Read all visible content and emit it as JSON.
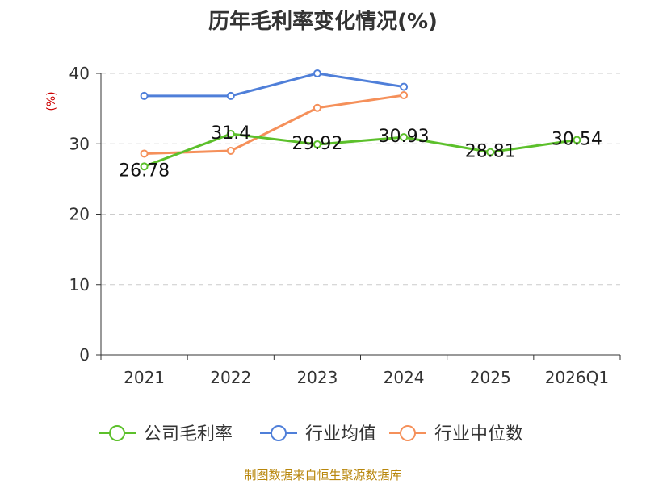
{
  "title": "历年毛利率变化情况(%)",
  "footer": "制图数据来自恒生聚源数据库",
  "chart_data": {
    "type": "line",
    "title": "历年毛利率变化情况(%)",
    "ylabel": "(%)",
    "xlabel": "",
    "categories": [
      "2021",
      "2022",
      "2023",
      "2024",
      "2025",
      "2026Q1"
    ],
    "ylim": [
      0,
      40
    ],
    "yticks": [
      0,
      10,
      20,
      30,
      40
    ],
    "grid": true,
    "legend_position": "bottom",
    "series": [
      {
        "name": "公司毛利率",
        "color": "#5cc02b",
        "show_labels": true,
        "values": [
          26.78,
          31.4,
          29.92,
          30.93,
          28.81,
          30.54
        ]
      },
      {
        "name": "行业均值",
        "color": "#4f7fd9",
        "show_labels": false,
        "values": [
          36.8,
          36.8,
          40.0,
          38.1,
          null,
          null
        ]
      },
      {
        "name": "行业中位数",
        "color": "#f5905a",
        "show_labels": false,
        "values": [
          28.6,
          29.0,
          35.1,
          36.9,
          null,
          null
        ]
      }
    ]
  }
}
